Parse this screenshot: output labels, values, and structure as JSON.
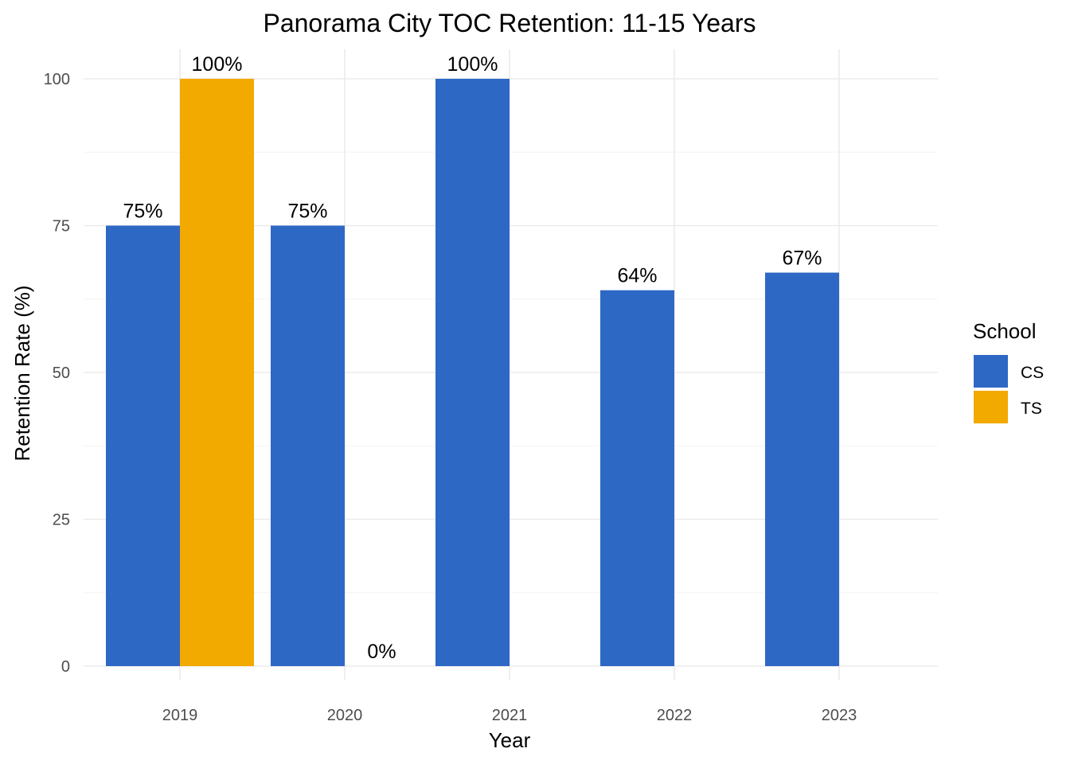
{
  "chart_data": {
    "type": "bar",
    "title": "Panorama City TOC Retention: 11-15 Years",
    "xlabel": "Year",
    "ylabel": "Retention Rate (%)",
    "categories": [
      "2019",
      "2020",
      "2021",
      "2022",
      "2023"
    ],
    "ylim": [
      0,
      100
    ],
    "y_ticks": [
      "0",
      "25",
      "50",
      "75",
      "100"
    ],
    "grid": true,
    "legend": {
      "title": "School",
      "position": "right"
    },
    "series": [
      {
        "name": "CS",
        "color": "#2e68c5",
        "values": [
          75,
          75,
          100,
          64,
          67
        ],
        "labels": [
          "75%",
          "75%",
          "100%",
          "64%",
          "67%"
        ]
      },
      {
        "name": "TS",
        "color": "#f2a900",
        "values": [
          100,
          0,
          null,
          null,
          null
        ],
        "labels": [
          "100%",
          "0%",
          null,
          null,
          null
        ]
      }
    ]
  }
}
